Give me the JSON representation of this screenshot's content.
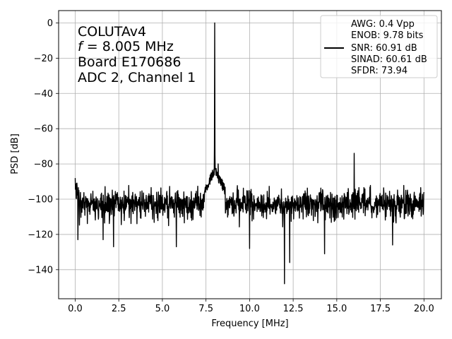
{
  "chart_data": {
    "type": "line",
    "xlabel": "Frequency [MHz]",
    "ylabel": "PSD [dB]",
    "xlim": [
      -0.95,
      21.0
    ],
    "ylim": [
      -156.5,
      7.0
    ],
    "xticks": [
      0.0,
      2.5,
      5.0,
      7.5,
      10.0,
      12.5,
      15.0,
      17.5,
      20.0
    ],
    "xtick_labels": [
      "0.0",
      "2.5",
      "5.0",
      "7.5",
      "10.0",
      "12.5",
      "15.0",
      "17.5",
      "20.0"
    ],
    "yticks": [
      0,
      -20,
      -40,
      -60,
      -80,
      -100,
      -120,
      -140
    ],
    "ytick_labels": [
      "0",
      "−20",
      "−40",
      "−60",
      "−80",
      "−100",
      "−120",
      "−140"
    ],
    "grid": true,
    "line_color": "#000000",
    "annotation_lines": [
      "COLUTAv4",
      "= 8.005 MHz",
      "Board E170686",
      "ADC 2, Channel 1"
    ],
    "annotation_f_symbol": "f",
    "legend": {
      "position": "top-right",
      "lines": [
        "AWG: 0.4 Vpp",
        "ENOB: 9.78 bits",
        "SNR: 60.91 dB",
        "SINAD: 60.61 dB",
        "SFDR: 73.94"
      ]
    },
    "spectrum": {
      "noise_floor_db": -103,
      "noise_band_db": [
        -112,
        -93
      ],
      "fundamental": {
        "freq_mhz": 8.005,
        "db": 0
      },
      "features": [
        {
          "freq_mhz": 0.0,
          "db": -88
        },
        {
          "freq_mhz": 0.15,
          "db": -123
        },
        {
          "freq_mhz": 1.6,
          "db": -123
        },
        {
          "freq_mhz": 2.2,
          "db": -127
        },
        {
          "freq_mhz": 5.8,
          "db": -127
        },
        {
          "freq_mhz": 7.7,
          "db": -88
        },
        {
          "freq_mhz": 8.2,
          "db": -80
        },
        {
          "freq_mhz": 10.0,
          "db": -128
        },
        {
          "freq_mhz": 12.0,
          "db": -148
        },
        {
          "freq_mhz": 12.3,
          "db": -136
        },
        {
          "freq_mhz": 14.3,
          "db": -131
        },
        {
          "freq_mhz": 16.0,
          "db": -74
        },
        {
          "freq_mhz": 18.2,
          "db": -126
        },
        {
          "freq_mhz": 20.0,
          "db": -96
        }
      ]
    }
  }
}
